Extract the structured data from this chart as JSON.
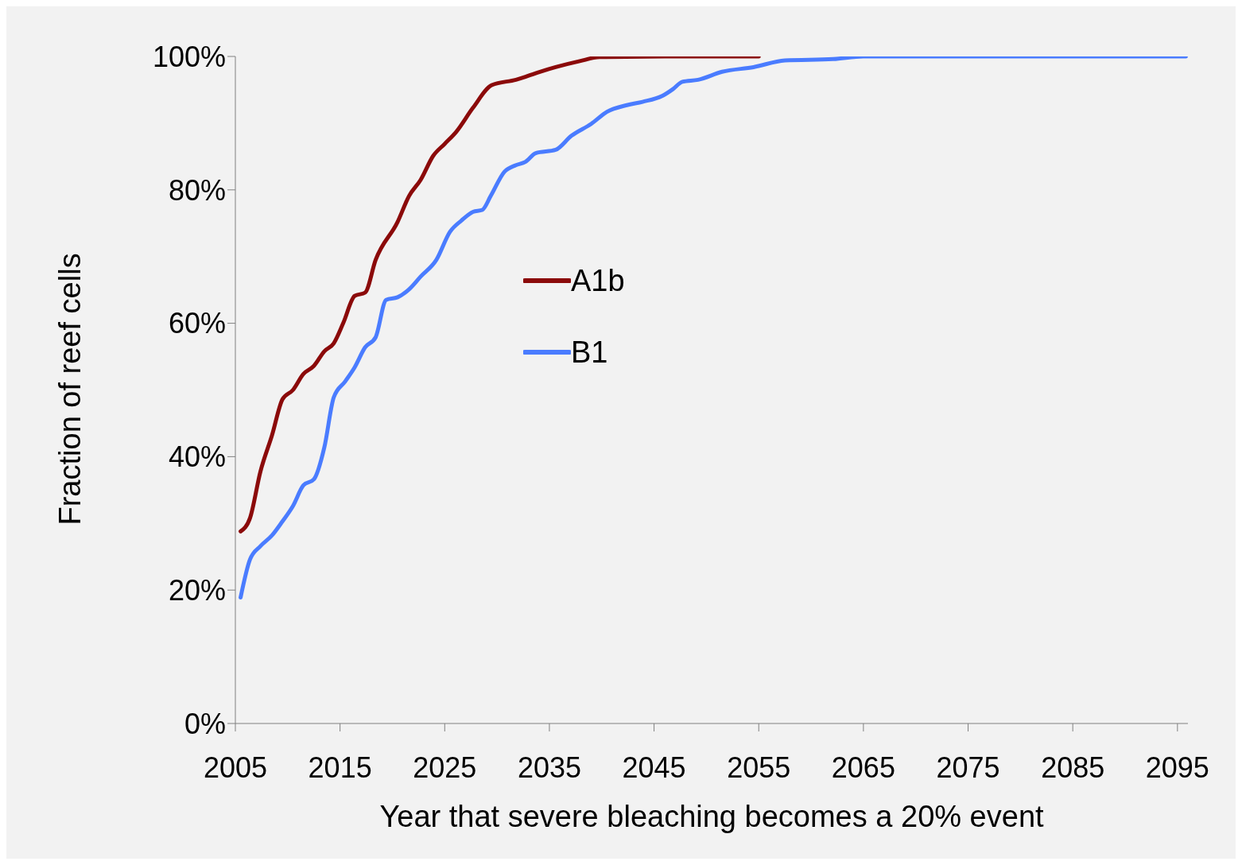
{
  "chart_data": {
    "type": "line",
    "xlabel": "Year that severe bleaching becomes a 20% event",
    "ylabel": "Fraction of reef cells",
    "xlim": [
      2005,
      2096
    ],
    "xticks": [
      2005,
      2015,
      2025,
      2035,
      2045,
      2055,
      2065,
      2075,
      2085,
      2095
    ],
    "ylim": [
      0,
      100
    ],
    "yticks": [
      {
        "value": 0,
        "label": "0%"
      },
      {
        "value": 20,
        "label": "20%"
      },
      {
        "value": 40,
        "label": "40%"
      },
      {
        "value": 60,
        "label": "60%"
      },
      {
        "value": 80,
        "label": "80%"
      },
      {
        "value": 100,
        "label": "100%"
      }
    ],
    "legend": "top left",
    "marker": "none",
    "line_style": "solid",
    "series": [
      {
        "name": "A1b",
        "color": "#8b0a0a",
        "x": [
          2005.5,
          2006.4,
          2007.4,
          2008.5,
          2009.5,
          2010.5,
          2011.5,
          2012.5,
          2013.5,
          2014.4,
          2015.3,
          2016.4,
          2017.4,
          2018.4,
          2020.5,
          2021.6,
          2022.7,
          2023.9,
          2025,
          2026.1,
          2027.7,
          2029.5,
          2031.8,
          2034.1,
          2035.6,
          2037.9,
          2039.8,
          2047,
          2055
        ],
        "values": [
          28.8,
          30.8,
          37.8,
          43.2,
          48.6,
          50,
          52.4,
          53.6,
          55.8,
          57,
          60,
          64.1,
          64.6,
          69.5,
          75.2,
          79.1,
          81.5,
          85.1,
          86.9,
          88.7,
          92.3,
          95.7,
          96.5,
          97.7,
          98.4,
          99.3,
          99.9,
          100,
          100
        ]
      },
      {
        "name": "B1",
        "color": "#4a7cff",
        "x": [
          2005.5,
          2006.4,
          2007.4,
          2008.5,
          2009.5,
          2010.5,
          2011.5,
          2012.5,
          2013.5,
          2014.4,
          2015.5,
          2016.4,
          2017.4,
          2018.4,
          2019.4,
          2020.5,
          2021.6,
          2022.7,
          2024.2,
          2025.5,
          2026.6,
          2027.7,
          2028.6,
          2029.4,
          2030.7,
          2031.8,
          2032.7,
          2033.7,
          2035.6,
          2037.1,
          2039,
          2040.5,
          2042.4,
          2043.9,
          2045.8,
          2046.8,
          2047.7,
          2049.2,
          2051.5,
          2054.5,
          2057.5,
          2062.1,
          2065,
          2095.8
        ],
        "values": [
          18.9,
          24.6,
          26.6,
          28.2,
          30.3,
          32.6,
          35.7,
          36.6,
          41.4,
          48.9,
          51.3,
          53.4,
          56.4,
          57.9,
          63.5,
          63.9,
          65.1,
          67,
          69.5,
          73.7,
          75.4,
          76.7,
          77,
          79.1,
          82.7,
          83.7,
          84.2,
          85.5,
          86,
          88.1,
          89.9,
          91.7,
          92.7,
          93.2,
          94.1,
          95.1,
          96.2,
          96.5,
          97.7,
          98.4,
          99.4,
          99.6,
          100,
          100
        ]
      }
    ]
  }
}
